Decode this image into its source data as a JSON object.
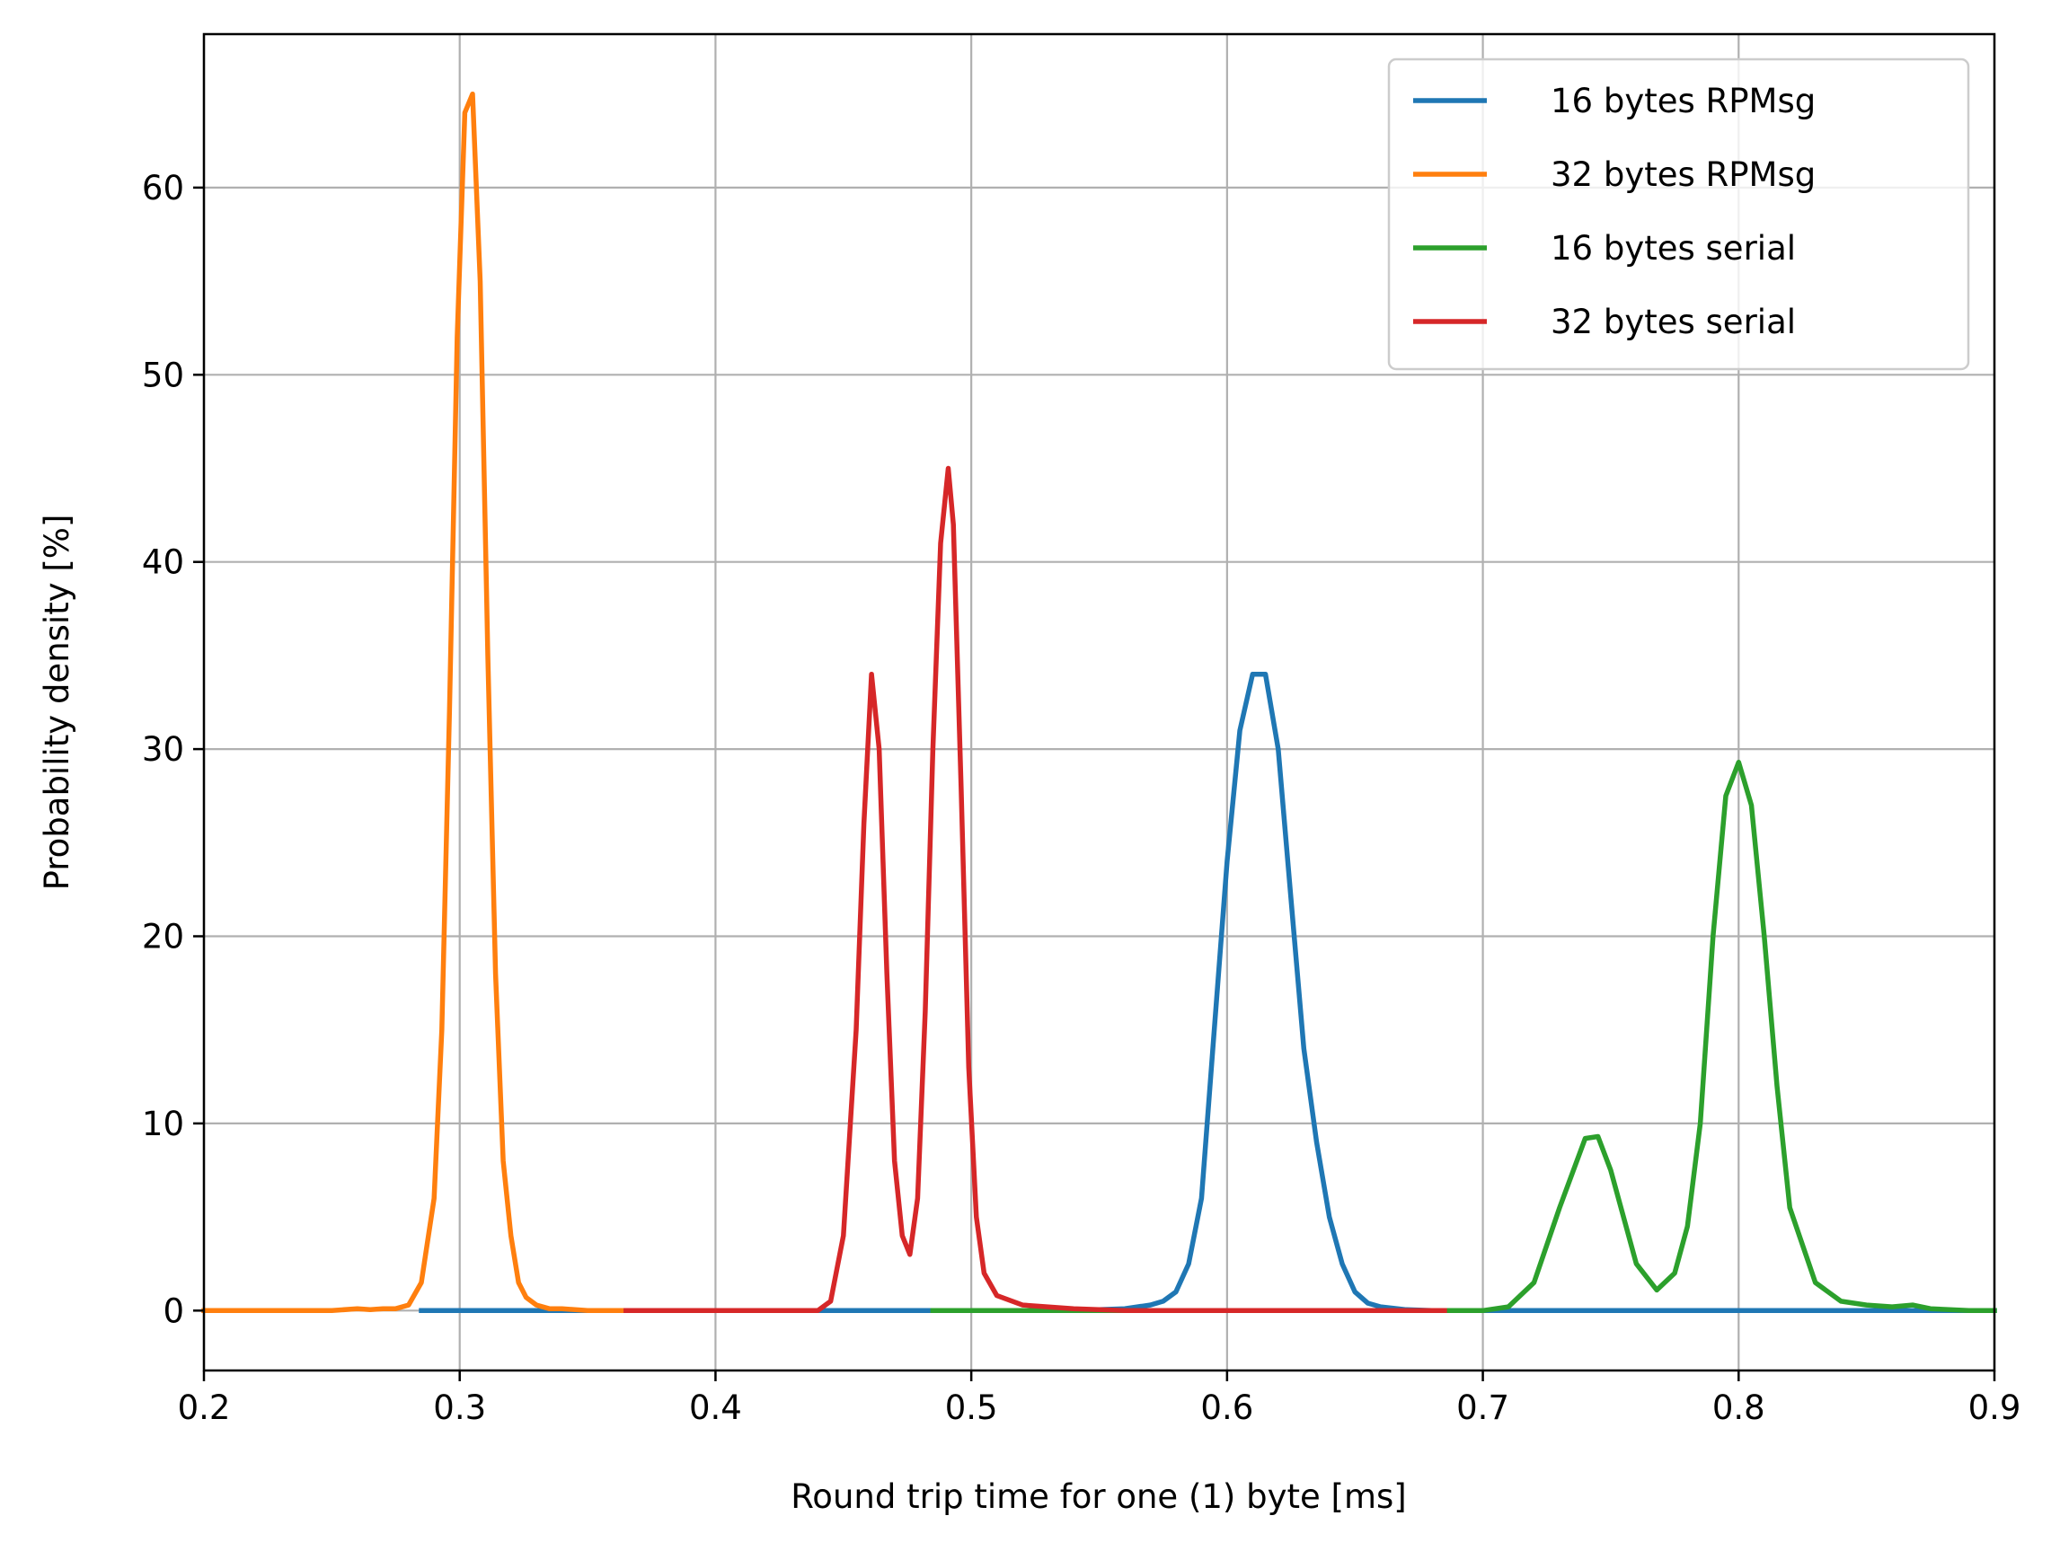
{
  "chart_data": {
    "type": "line",
    "title": "",
    "xlabel": "Round trip time for one (1) byte [ms]",
    "ylabel": "Probability density [%]",
    "xlim": [
      0.2,
      0.9
    ],
    "ylim": [
      -3.2,
      68.2
    ],
    "xticks": [
      0.2,
      0.3,
      0.4,
      0.5,
      0.6,
      0.7,
      0.8,
      0.9
    ],
    "xtick_labels": [
      "0.2",
      "0.3",
      "0.4",
      "0.5",
      "0.6",
      "0.7",
      "0.8",
      "0.9"
    ],
    "yticks": [
      0,
      10,
      20,
      30,
      40,
      50,
      60
    ],
    "ytick_labels": [
      "0",
      "10",
      "20",
      "30",
      "40",
      "50",
      "60"
    ],
    "grid": true,
    "legend_position": "top-right",
    "series": [
      {
        "name": "16 bytes RPMsg",
        "color": "#1f77b4",
        "x": [
          0.285,
          0.36,
          0.45,
          0.54,
          0.56,
          0.57,
          0.575,
          0.58,
          0.585,
          0.59,
          0.595,
          0.6,
          0.605,
          0.61,
          0.615,
          0.62,
          0.625,
          0.63,
          0.635,
          0.64,
          0.645,
          0.65,
          0.655,
          0.66,
          0.67,
          0.68,
          0.7,
          0.8,
          0.9
        ],
        "y": [
          0,
          0,
          0,
          0,
          0.1,
          0.3,
          0.5,
          1.0,
          2.5,
          6,
          15,
          24,
          31,
          34,
          34,
          30,
          22,
          14,
          9,
          5,
          2.5,
          1,
          0.4,
          0.2,
          0.05,
          0,
          0,
          0,
          0
        ]
      },
      {
        "name": "32 bytes RPMsg",
        "color": "#ff7f0e",
        "x": [
          0.2,
          0.25,
          0.26,
          0.265,
          0.27,
          0.275,
          0.28,
          0.285,
          0.29,
          0.293,
          0.296,
          0.299,
          0.302,
          0.305,
          0.308,
          0.311,
          0.314,
          0.317,
          0.32,
          0.323,
          0.326,
          0.33,
          0.335,
          0.34,
          0.35,
          0.365
        ],
        "y": [
          0,
          0,
          0.1,
          0.05,
          0.1,
          0.1,
          0.3,
          1.5,
          6,
          15,
          32,
          52,
          64,
          65,
          55,
          35,
          18,
          8,
          4,
          1.5,
          0.7,
          0.3,
          0.1,
          0.1,
          0,
          0
        ]
      },
      {
        "name": "16 bytes serial",
        "color": "#2ca02c",
        "x": [
          0.485,
          0.6,
          0.685,
          0.7,
          0.71,
          0.72,
          0.73,
          0.74,
          0.745,
          0.75,
          0.76,
          0.768,
          0.775,
          0.78,
          0.785,
          0.79,
          0.795,
          0.8,
          0.805,
          0.81,
          0.815,
          0.82,
          0.83,
          0.84,
          0.85,
          0.86,
          0.868,
          0.875,
          0.89,
          0.9
        ],
        "y": [
          0,
          0,
          0,
          0,
          0.2,
          1.5,
          5.5,
          9.2,
          9.3,
          7.5,
          2.5,
          1.1,
          2,
          4.5,
          10,
          20,
          27.5,
          29.3,
          27,
          20,
          12,
          5.5,
          1.5,
          0.5,
          0.3,
          0.2,
          0.3,
          0.1,
          0,
          0
        ]
      },
      {
        "name": "32 bytes serial",
        "color": "#d62728",
        "x": [
          0.365,
          0.4,
          0.44,
          0.445,
          0.45,
          0.455,
          0.458,
          0.461,
          0.464,
          0.467,
          0.47,
          0.473,
          0.476,
          0.479,
          0.482,
          0.485,
          0.488,
          0.491,
          0.493,
          0.496,
          0.499,
          0.502,
          0.505,
          0.51,
          0.52,
          0.54,
          0.56,
          0.6,
          0.685
        ],
        "y": [
          0,
          0,
          0,
          0.5,
          4,
          15,
          26,
          34,
          30,
          18,
          8,
          4,
          3,
          6,
          16,
          30,
          41,
          45,
          42,
          28,
          13,
          5,
          2,
          0.8,
          0.3,
          0.1,
          0,
          0,
          0
        ]
      }
    ]
  }
}
